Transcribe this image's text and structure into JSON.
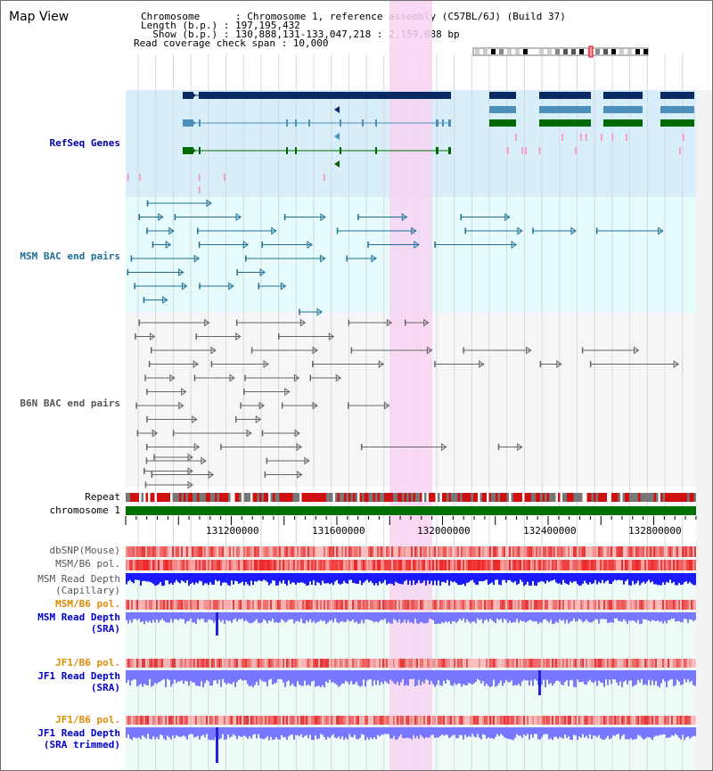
{
  "panel": {
    "title": "Map View"
  },
  "info": {
    "chromosome_line": "Chromosome      : Chromosome 1, reference assembly (C57BL/6J) (Build 37)",
    "length_line": "Length (b.p.) : 197,195,432",
    "show_line": "  Show (b.p.) : 130,888,131-133,047,218 : 2,159,088 bp",
    "coverage_line": "Read coverage check span : 10,000"
  },
  "tracks": {
    "refseq": "RefSeq Genes",
    "msm_bac": "MSM BAC end pairs",
    "b6n_bac": "B6N BAC end pairs",
    "repeat": "Repeat",
    "chromosome": "chromosome 1",
    "dbsnp": "dbSNP(Mouse)",
    "msm_b6_pol": "MSM/B6 pol.",
    "msm_depth_cap_1": "MSM Read Depth",
    "msm_depth_cap_2": "(Capillary)",
    "msm_b6_pol_2": "MSM/B6 pol.",
    "msm_depth_sra_1": "MSM Read Depth",
    "msm_depth_sra_2": "(SRA)",
    "jf1_pol_1": "JF1/B6 pol.",
    "jf1_depth_sra_1": "JF1 Read Depth",
    "jf1_depth_sra_2": "(SRA)",
    "jf1_pol_2": "JF1/B6 pol.",
    "jf1_depth_trim_1": "JF1 Read Depth",
    "jf1_depth_trim_2": "(SRA trimmed)"
  },
  "axis": {
    "ticks": [
      "131200000",
      "131600000",
      "132000000",
      "132400000",
      "132800000"
    ]
  },
  "colors": {
    "refseq_bg": "#d9eefb",
    "msm_bg": "#e6fbfb",
    "highlight": "#f7d4f3",
    "chromosome": "#007000",
    "refseq_dark": "#0a2a66",
    "refseq_mid": "#4a90bb",
    "refseq_green": "#006a00",
    "msm_bac": "#1f6f96",
    "b6n_bac": "#666666",
    "depth_blue": "#1a1aff",
    "depth_lav": "#7777ff"
  }
}
